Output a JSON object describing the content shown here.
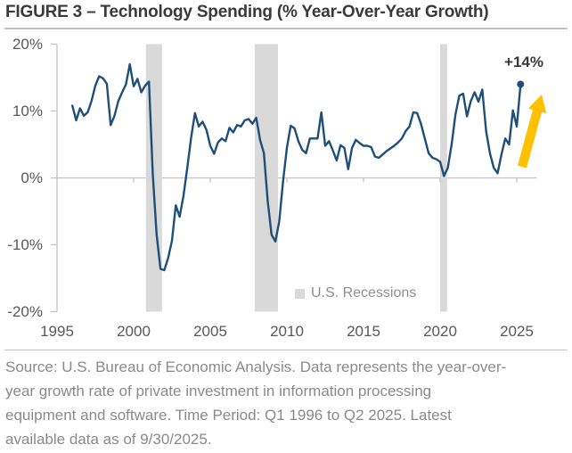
{
  "title": "FIGURE 3 – Technology Spending (% Year-Over-Year Growth)",
  "chart_data": {
    "type": "line",
    "series_name": "Technology spending year-over-year growth (%)",
    "period": "quarterly",
    "start_year": 1996,
    "end_label": "Q2 2025",
    "values": [
      10.8,
      8.6,
      10.4,
      9.3,
      9.8,
      11.5,
      13.8,
      15.2,
      14.9,
      14.1,
      7.9,
      9.3,
      11.5,
      12.8,
      14.0,
      17.0,
      13.7,
      14.8,
      12.8,
      13.8,
      14.4,
      0.5,
      -8.5,
      -13.6,
      -13.8,
      -12.0,
      -9.4,
      -4.1,
      -5.8,
      -2.7,
      1.5,
      6.0,
      9.7,
      7.7,
      8.4,
      7.2,
      4.8,
      3.6,
      5.3,
      5.9,
      5.5,
      7.5,
      6.8,
      7.9,
      7.7,
      8.6,
      8.8,
      8.1,
      9.0,
      5.7,
      3.7,
      -3.5,
      -8.5,
      -9.5,
      -6.5,
      -0.5,
      4.5,
      7.8,
      7.4,
      5.5,
      4.2,
      3.7,
      5.9,
      5.9,
      5.9,
      9.8,
      4.8,
      5.5,
      4.1,
      2.6,
      4.9,
      4.5,
      1.3,
      4.5,
      5.7,
      5.2,
      4.8,
      4.8,
      4.6,
      3.2,
      3.0,
      3.5,
      4.0,
      4.4,
      4.8,
      5.3,
      5.9,
      7.0,
      7.7,
      9.8,
      9.7,
      8.1,
      5.9,
      3.7,
      3.0,
      2.8,
      2.4,
      0.3,
      1.5,
      5.0,
      9.5,
      12.3,
      12.6,
      9.2,
      11.5,
      12.8,
      11.4,
      13.2,
      7.0,
      3.7,
      1.5,
      0.7,
      3.5,
      5.9,
      5.0,
      10.1,
      7.7,
      14.0
    ],
    "ylim": [
      -20,
      20
    ],
    "xlim": [
      1995,
      2026.3
    ],
    "grid": "zero-line-only",
    "y_ticks": [
      {
        "value": 20,
        "label": "20%"
      },
      {
        "value": 10,
        "label": "10%"
      },
      {
        "value": 0,
        "label": "0%"
      },
      {
        "value": -10,
        "label": "-10%"
      },
      {
        "value": -20,
        "label": "-20%"
      }
    ],
    "x_ticks": [
      {
        "value": 1995,
        "label": "1995"
      },
      {
        "value": 2000,
        "label": "2000"
      },
      {
        "value": 2005,
        "label": "2005"
      },
      {
        "value": 2010,
        "label": "2010"
      },
      {
        "value": 2015,
        "label": "2015"
      },
      {
        "value": 2020,
        "label": "2020"
      },
      {
        "value": 2025,
        "label": "2025"
      }
    ],
    "recessions": [
      {
        "start": 2000.8,
        "end": 2001.85
      },
      {
        "start": 2007.9,
        "end": 2009.42
      },
      {
        "start": 2020.0,
        "end": 2020.45
      }
    ],
    "legend": {
      "label": "U.S. Recessions",
      "position": "inside-bottom-center"
    },
    "annotation": {
      "label": "+14%",
      "point_value": 14.0,
      "point_quarter": "Q2 2025",
      "arrow": {
        "from": [
          586,
          187
        ],
        "to": [
          608,
          106
        ]
      }
    },
    "colors": {
      "line": "#1F4E79",
      "dot": "#1F4E79",
      "recession": "#D9D9D9",
      "axis": "#C3C3C3",
      "tick_text": "#595959",
      "legend_text": "#8F8F8F",
      "annotation_text": "#3A3A3A",
      "arrow": "#FFC000"
    }
  },
  "footer": {
    "lines": [
      "Source: U.S. Bureau of Economic Analysis. Data represents the year-over-",
      "year growth rate of private investment in information processing",
      "equipment and software. Time Period: Q1 1996 to Q2 2025. Latest",
      "available data as of 9/30/2025."
    ]
  }
}
